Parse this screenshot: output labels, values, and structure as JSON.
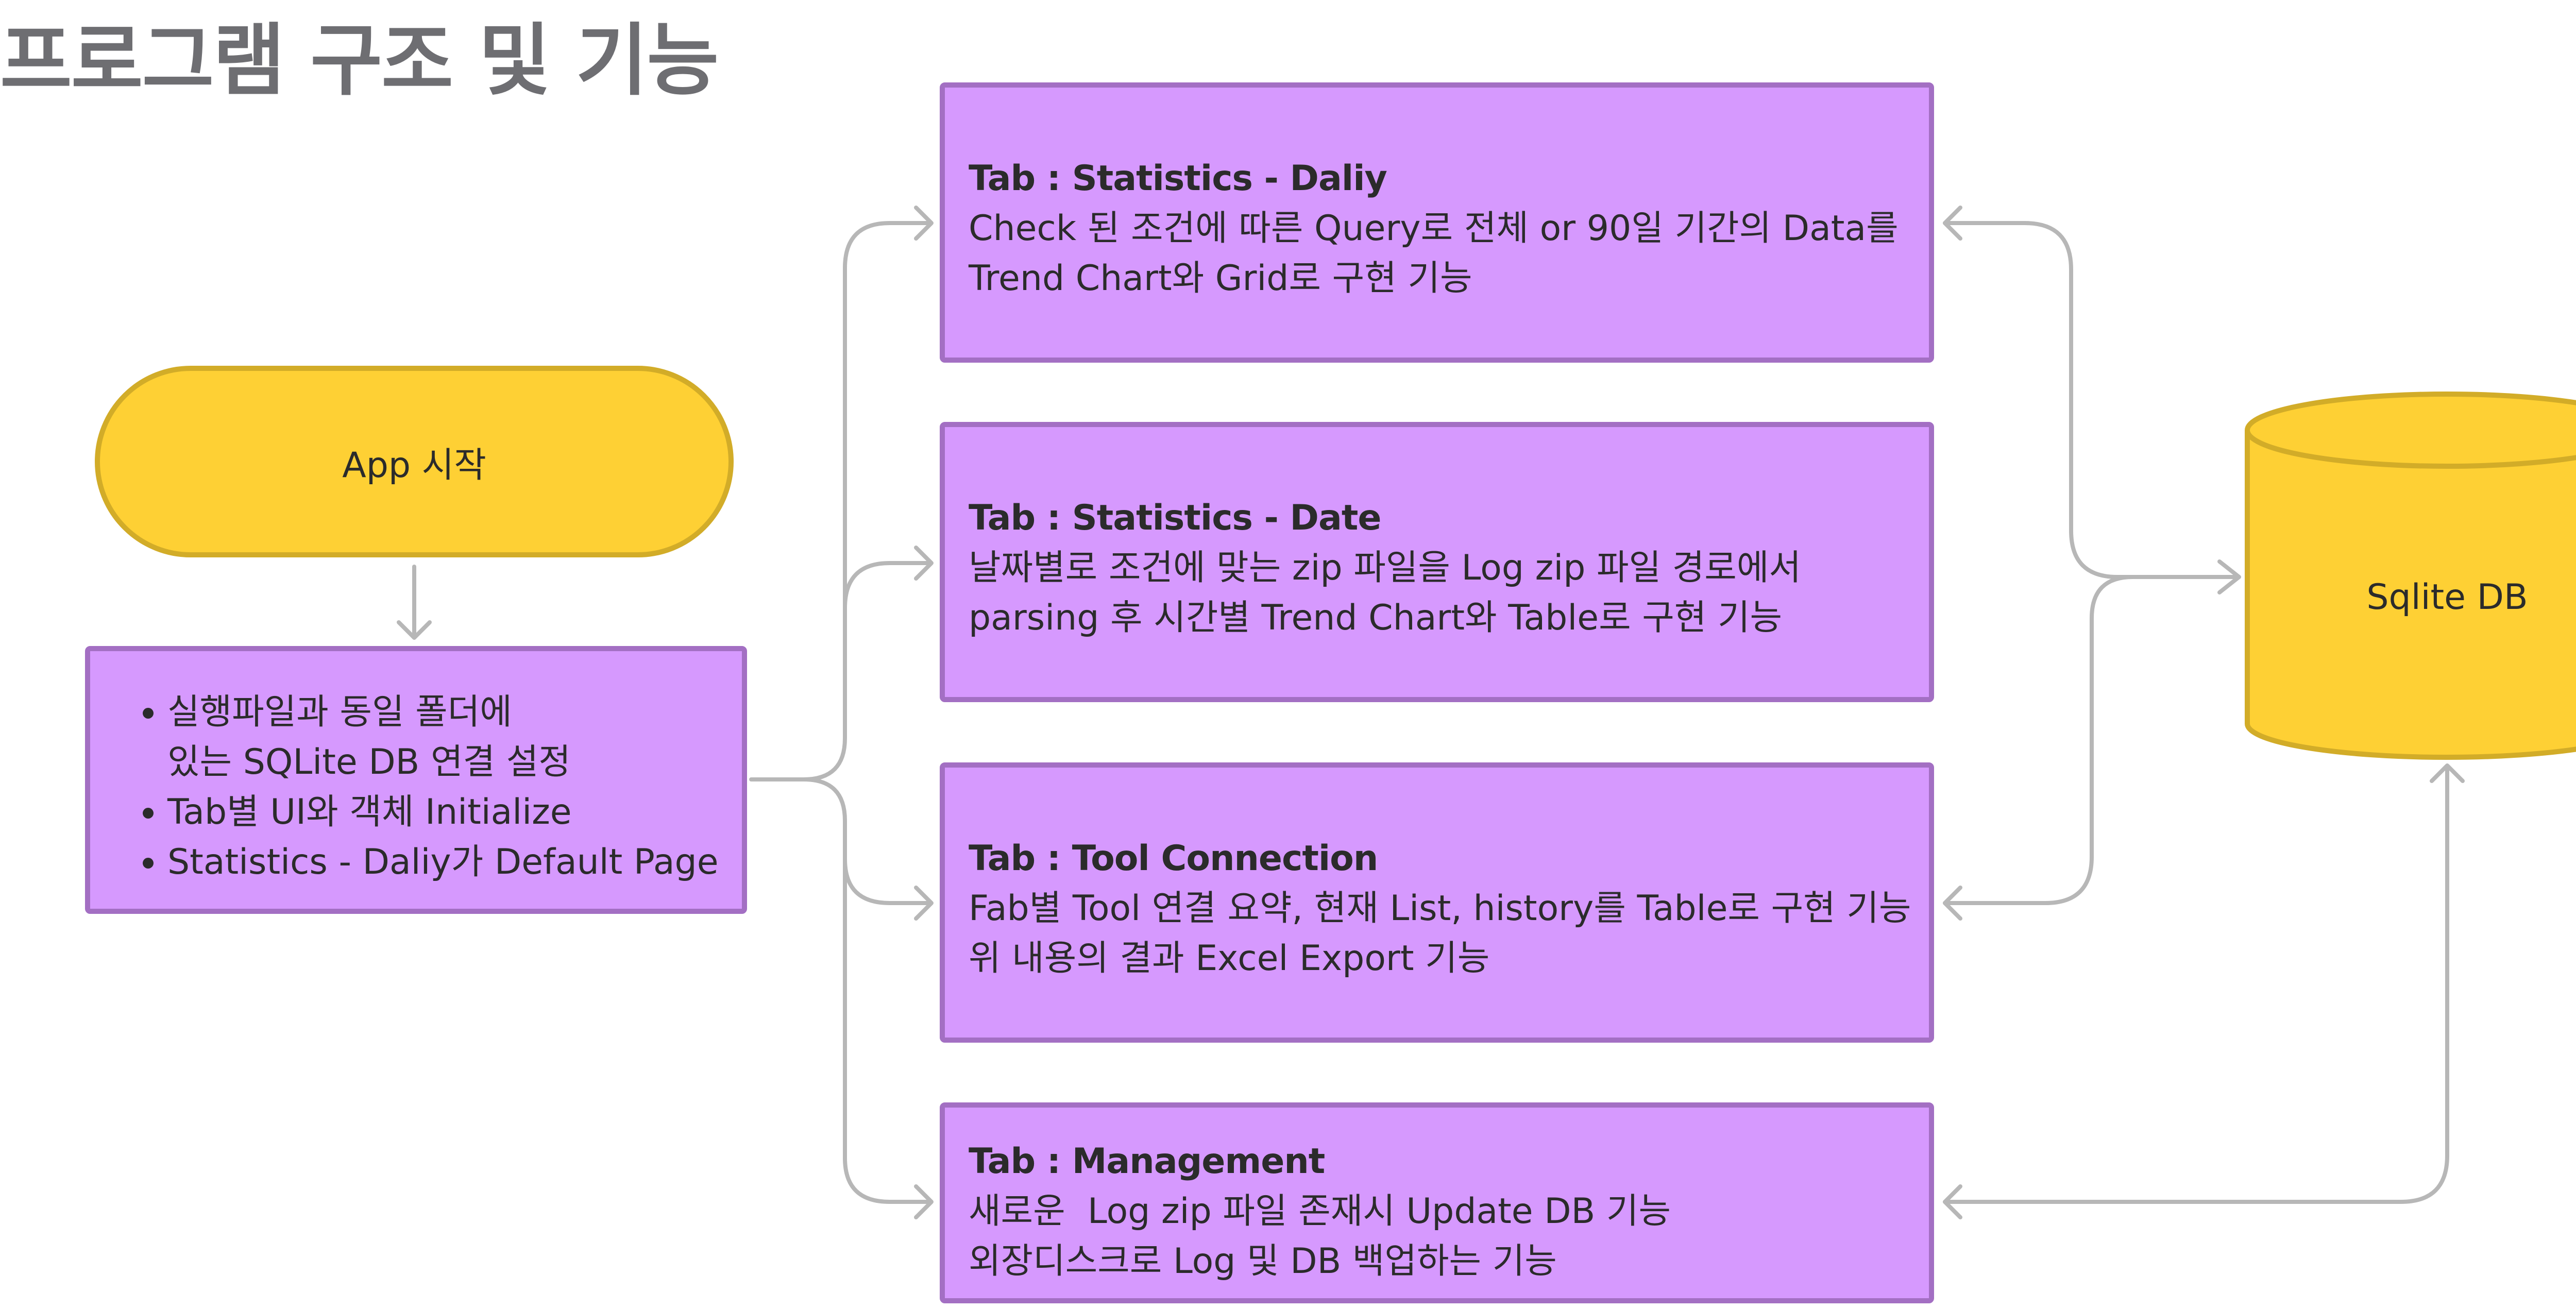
{
  "title": "프로그램 구조 및 기능",
  "colors": {
    "start_fill": "#fed034",
    "start_border": "#d2ac28",
    "process_fill": "#d699fe",
    "process_border": "#a36fc3",
    "connector": "#b7b7b7",
    "title_text": "#6e6e72"
  },
  "nodes": {
    "start": {
      "label": "App 시작",
      "shape": "rounded-terminator"
    },
    "init": {
      "shape": "rectangle",
      "items": [
        "실행파일과 동일 폴더에",
        "있는 SQLite DB 연결 설정",
        "Tab별 UI와 객체 Initialize",
        "Statistics - Daliy가 Default Page"
      ]
    },
    "tabs": [
      {
        "id": "daily",
        "title": "Tab : Statistics - Daliy",
        "lines": [
          "Check 된 조건에 따른 Query로 전체 or 90일 기간의 Data를",
          "Trend Chart와 Grid로 구현 기능"
        ]
      },
      {
        "id": "date",
        "title": "Tab : Statistics - Date",
        "lines": [
          "날짜별로 조건에 맞는 zip 파일을 Log zip 파일 경로에서",
          "parsing 후 시간별 Trend Chart와 Table로 구현 기능"
        ]
      },
      {
        "id": "tool",
        "title": "Tab : Tool Connection",
        "lines": [
          "Fab별 Tool 연결 요약, 현재 List, history를 Table로 구현 기능",
          "위 내용의 결과 Excel Export 기능"
        ]
      },
      {
        "id": "mgmt",
        "title": "Tab : Management",
        "lines": [
          "새로운  Log zip 파일 존재시 Update DB 기능",
          "외장디스크로 Log 및 DB 백업하는 기능"
        ]
      }
    ],
    "database": {
      "label": "Sqlite DB",
      "shape": "cylinder"
    }
  },
  "edges": [
    {
      "from": "start",
      "to": "init"
    },
    {
      "from": "init",
      "to": "daily"
    },
    {
      "from": "init",
      "to": "date"
    },
    {
      "from": "init",
      "to": "tool"
    },
    {
      "from": "init",
      "to": "mgmt"
    },
    {
      "from": "database",
      "to": "daily"
    },
    {
      "from": "daily",
      "to": "database"
    },
    {
      "from": "date",
      "to": "database"
    },
    {
      "from": "database",
      "to": "tool"
    },
    {
      "from": "database",
      "to": "mgmt"
    }
  ]
}
